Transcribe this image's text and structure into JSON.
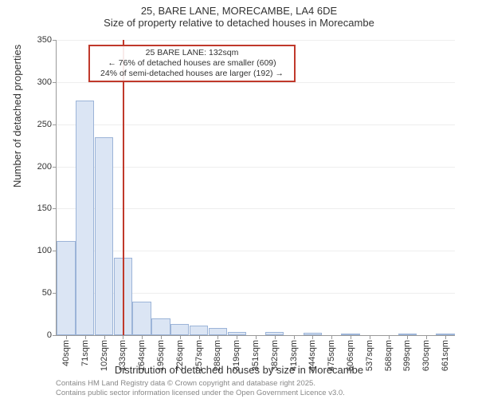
{
  "title": {
    "line1": "25, BARE LANE, MORECAMBE, LA4 6DE",
    "line2": "Size of property relative to detached houses in Morecambe"
  },
  "axes": {
    "ylabel": "Number of detached properties",
    "xlabel": "Distribution of detached houses by size in Morecambe",
    "ylim": [
      0,
      350
    ],
    "ytick_step": 50,
    "yticks": [
      0,
      50,
      100,
      150,
      200,
      250,
      300,
      350
    ],
    "xticks": [
      "40sqm",
      "71sqm",
      "102sqm",
      "133sqm",
      "164sqm",
      "195sqm",
      "226sqm",
      "257sqm",
      "288sqm",
      "319sqm",
      "351sqm",
      "382sqm",
      "413sqm",
      "444sqm",
      "475sqm",
      "506sqm",
      "537sqm",
      "568sqm",
      "599sqm",
      "630sqm",
      "661sqm"
    ]
  },
  "histogram": {
    "type": "histogram",
    "bar_fill": "#dbe5f4",
    "bar_stroke": "#9cb4d8",
    "grid_color": "#eeeeee",
    "axis_color": "#999999",
    "background_color": "#ffffff",
    "values": [
      112,
      278,
      235,
      92,
      40,
      20,
      13,
      11,
      9,
      4,
      0,
      4,
      0,
      3,
      0,
      2,
      0,
      0,
      2,
      0,
      2
    ]
  },
  "marker": {
    "value_sqm": 132,
    "line_color": "#c0392b",
    "box_border_color": "#c0392b",
    "lines": [
      "25 BARE LANE: 132sqm",
      "← 76% of detached houses are smaller (609)",
      "24% of semi-detached houses are larger (192) →"
    ]
  },
  "footer": {
    "line1": "Contains HM Land Registry data © Crown copyright and database right 2025.",
    "line2": "Contains public sector information licensed under the Open Government Licence v3.0."
  }
}
